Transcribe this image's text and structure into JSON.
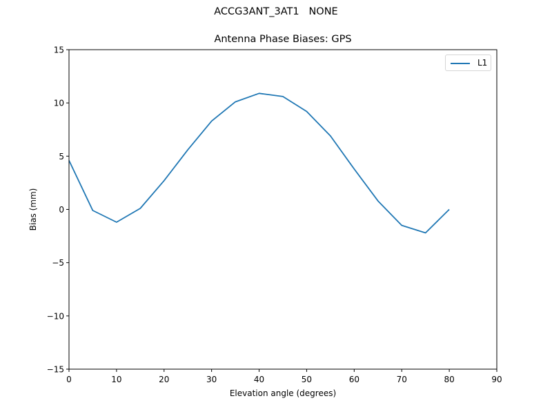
{
  "figure": {
    "suptitle": "ACCG3ANT_3AT1   NONE",
    "title": "Antenna Phase Biases: GPS",
    "xlabel": "Elevation angle (degrees)",
    "ylabel": "Bias (mm)",
    "line_color": "#1f77b4"
  },
  "legend": {
    "entries": [
      {
        "label": "L1",
        "color": "#1f77b4"
      }
    ]
  },
  "axes": {
    "xticks": [
      "0",
      "10",
      "20",
      "30",
      "40",
      "50",
      "60",
      "70",
      "80",
      "90"
    ],
    "yticks": [
      "15",
      "10",
      "5",
      "0",
      "−5",
      "−10",
      "−15"
    ]
  },
  "chart_data": {
    "type": "line",
    "title": "Antenna Phase Biases: GPS",
    "suptitle": "ACCG3ANT_3AT1   NONE",
    "xlabel": "Elevation angle (degrees)",
    "ylabel": "Bias (mm)",
    "xlim": [
      0,
      90
    ],
    "ylim": [
      -15,
      15
    ],
    "grid": false,
    "legend_position": "upper right",
    "series": [
      {
        "name": "L1",
        "x": [
          0,
          5,
          10,
          15,
          20,
          25,
          30,
          35,
          40,
          45,
          50,
          55,
          60,
          65,
          70,
          75,
          80
        ],
        "values": [
          4.6,
          -0.1,
          -1.2,
          0.1,
          2.7,
          5.6,
          8.3,
          10.1,
          10.9,
          10.6,
          9.2,
          6.9,
          3.8,
          0.8,
          -1.5,
          -2.2,
          0.0
        ]
      }
    ]
  }
}
